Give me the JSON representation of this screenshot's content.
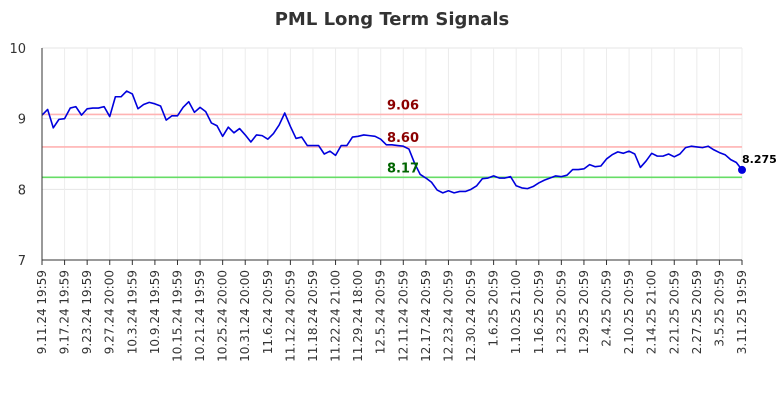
{
  "chart_data": {
    "type": "line",
    "title": "PML Long Term Signals",
    "xlabel": "",
    "ylabel": "",
    "ylim": [
      7,
      10
    ],
    "yticks": [
      "7",
      "8",
      "9",
      "10"
    ],
    "grid": true,
    "xtick_labels": [
      "9.11.24 19:59",
      "9.17.24 19:59",
      "9.23.24 19:59",
      "9.27.24 20:00",
      "10.3.24 19:59",
      "10.9.24 19:59",
      "10.15.24 19:59",
      "10.21.24 19:59",
      "10.25.24 20:00",
      "10.31.24 20:00",
      "11.6.24 20:59",
      "11.12.24 20:59",
      "11.18.24 20:59",
      "11.22.24 21:00",
      "11.29.24 18:00",
      "12.5.24 20:59",
      "12.11.24 20:59",
      "12.17.24 20:59",
      "12.23.24 20:59",
      "12.30.24 20:59",
      "1.6.25 20:59",
      "1.10.25 21:00",
      "1.16.25 20:59",
      "1.23.25 20:59",
      "1.29.25 20:59",
      "2.4.25 20:59",
      "2.10.25 20:59",
      "2.14.25 21:00",
      "2.21.25 20:59",
      "2.27.25 20:59",
      "3.5.25 20:59",
      "3.11.25 19:59"
    ],
    "reference_lines": [
      {
        "label": "9.06",
        "value": 9.06,
        "color": "#ffb3b3",
        "label_color": "#8b0000"
      },
      {
        "label": "8.60",
        "value": 8.6,
        "color": "#ffb3b3",
        "label_color": "#8b0000"
      },
      {
        "label": "8.17",
        "value": 8.17,
        "color": "#66dd66",
        "label_color": "#006400"
      }
    ],
    "line_color": "#0000dd",
    "last_value_label": "8.275",
    "series": [
      {
        "values": [
          9.05,
          9.13,
          8.87,
          8.99,
          9.0,
          9.15,
          9.17,
          9.05,
          9.14,
          9.15,
          9.15,
          9.17,
          9.03,
          9.31,
          9.31,
          9.39,
          9.35,
          9.14,
          9.2,
          9.23,
          9.21,
          9.18,
          8.98,
          9.04,
          9.04,
          9.16,
          9.24,
          9.09,
          9.16,
          9.1,
          8.94,
          8.9,
          8.75,
          8.88,
          8.8,
          8.86,
          8.77,
          8.67,
          8.77,
          8.76,
          8.71,
          8.79,
          8.91,
          9.08,
          8.89,
          8.72,
          8.74,
          8.62,
          8.62,
          8.62,
          8.5,
          8.54,
          8.48,
          8.62,
          8.62,
          8.74,
          8.75,
          8.77,
          8.76,
          8.75,
          8.71,
          8.63,
          8.63,
          8.62,
          8.61,
          8.57,
          8.37,
          8.21,
          8.16,
          8.1,
          7.99,
          7.95,
          7.98,
          7.95,
          7.97,
          7.97,
          8.0,
          8.05,
          8.15,
          8.16,
          8.19,
          8.16,
          8.16,
          8.18,
          8.05,
          8.02,
          8.01,
          8.04,
          8.09,
          8.13,
          8.16,
          8.19,
          8.18,
          8.2,
          8.28,
          8.28,
          8.29,
          8.35,
          8.32,
          8.33,
          8.43,
          8.49,
          8.53,
          8.51,
          8.54,
          8.5,
          8.31,
          8.4,
          8.51,
          8.47,
          8.47,
          8.5,
          8.46,
          8.5,
          8.59,
          8.61,
          8.6,
          8.59,
          8.61,
          8.56,
          8.52,
          8.49,
          8.42,
          8.38,
          8.275
        ]
      }
    ]
  }
}
